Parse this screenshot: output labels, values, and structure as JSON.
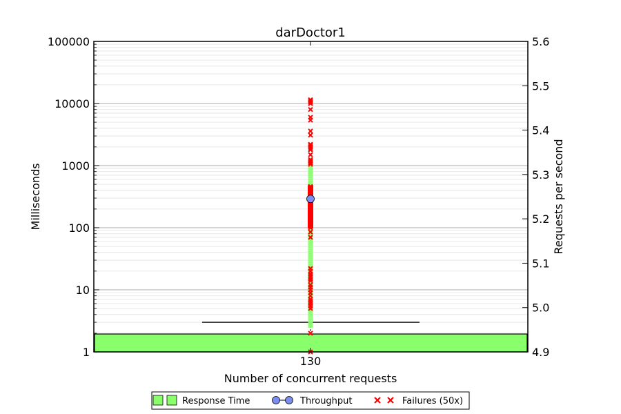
{
  "chart_data": {
    "type": "scatter",
    "title": "darDoctor1",
    "xlabel": "Number of concurrent requests",
    "ylabel": "Milliseconds",
    "y2label": "Requests per second",
    "categories": [
      "130"
    ],
    "y_scale": "log",
    "ylim": [
      1,
      100000
    ],
    "y_ticks": [
      "1",
      "10",
      "100",
      "1000",
      "10000",
      "100000"
    ],
    "y2lim": [
      4.9,
      5.6
    ],
    "y2_ticks": [
      "4.9",
      "5.0",
      "5.1",
      "5.2",
      "5.3",
      "5.4",
      "5.5",
      "5.6"
    ],
    "grid": true,
    "legend_position": "bottom-center",
    "legend": [
      {
        "label": "Response Time",
        "marker": "square",
        "color": "#88ff6b"
      },
      {
        "label": "Throughput",
        "marker": "circle-line",
        "color": "#7b8ef0"
      },
      {
        "label": "Failures (50x)",
        "marker": "x",
        "color": "#ff0000"
      }
    ],
    "series": [
      {
        "name": "Response Time",
        "x": "130",
        "boxplot": {
          "whisker_low": 1,
          "q1": 1,
          "median": 1,
          "q3": 1,
          "whisker_high": 3
        },
        "sample_range_ms": [
          2.5,
          1000
        ]
      },
      {
        "name": "Throughput",
        "x": "130",
        "value": 5.245
      },
      {
        "name": "Failures (50x)",
        "x": "130",
        "values": [
          1,
          2,
          5,
          5.5,
          6,
          6.5,
          7,
          8,
          9,
          10,
          11,
          12,
          14,
          15,
          16,
          17,
          18,
          20,
          22,
          70,
          85,
          100,
          110,
          120,
          130,
          140,
          150,
          160,
          180,
          200,
          220,
          240,
          260,
          280,
          300,
          330,
          360,
          400,
          430,
          460,
          1050,
          1100,
          1150,
          1200,
          1250,
          1500,
          1800,
          1900,
          2000,
          2100,
          2200,
          3100,
          3600,
          5400,
          6000,
          8000,
          10000,
          10500,
          11000,
          11500
        ]
      }
    ]
  }
}
